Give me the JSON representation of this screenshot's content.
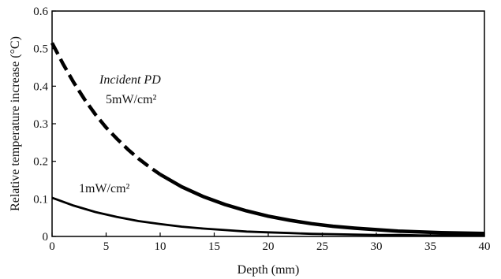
{
  "chart_data": {
    "type": "line",
    "title": "",
    "xlabel": "Depth (mm)",
    "ylabel": "Relative temperature increase (°C)",
    "xlim": [
      0,
      40
    ],
    "ylim": [
      0,
      0.6
    ],
    "x_ticks": [
      0,
      5,
      10,
      15,
      20,
      25,
      30,
      35,
      40
    ],
    "x_tick_labels": [
      "0",
      "5",
      "10",
      "15",
      "20",
      "25",
      "30",
      "35",
      "40"
    ],
    "y_ticks": [
      0,
      0.1,
      0.2,
      0.3,
      0.4,
      0.5,
      0.6
    ],
    "y_tick_labels": [
      "0",
      "0.1",
      "0.2",
      "0.3",
      "0.4",
      "0.5",
      "0.6"
    ],
    "grid": false,
    "legend": "none",
    "annotations": [
      {
        "text": "Incident PD",
        "style": "italic"
      },
      {
        "text": "5mW/cm²",
        "style": "normal"
      },
      {
        "text": "1mW/cm²",
        "style": "normal"
      }
    ],
    "series": [
      {
        "label_annotation": "5mW/cm²",
        "color": "#000000",
        "style": "dashed-then-solid",
        "dash_until_x": 10,
        "x": [
          0,
          1,
          2,
          3,
          4,
          5,
          6,
          7,
          8,
          9,
          10,
          12,
          14,
          16,
          18,
          20,
          22,
          24,
          26,
          28,
          30,
          32,
          34,
          36,
          38,
          40
        ],
        "y": [
          0.515,
          0.46,
          0.41,
          0.365,
          0.325,
          0.29,
          0.26,
          0.232,
          0.207,
          0.185,
          0.165,
          0.132,
          0.106,
          0.085,
          0.068,
          0.054,
          0.043,
          0.034,
          0.027,
          0.022,
          0.018,
          0.014,
          0.012,
          0.01,
          0.009,
          0.008
        ]
      },
      {
        "label_annotation": "1mW/cm²",
        "color": "#000000",
        "style": "solid",
        "x": [
          0,
          2,
          4,
          6,
          8,
          10,
          12,
          14,
          16,
          18,
          20,
          22,
          24,
          26,
          28,
          30,
          32,
          34,
          36,
          38,
          40
        ],
        "y": [
          0.103,
          0.082,
          0.065,
          0.052,
          0.041,
          0.033,
          0.026,
          0.021,
          0.017,
          0.013,
          0.011,
          0.009,
          0.007,
          0.006,
          0.005,
          0.004,
          0.004,
          0.003,
          0.003,
          0.003,
          0.003
        ]
      }
    ]
  }
}
